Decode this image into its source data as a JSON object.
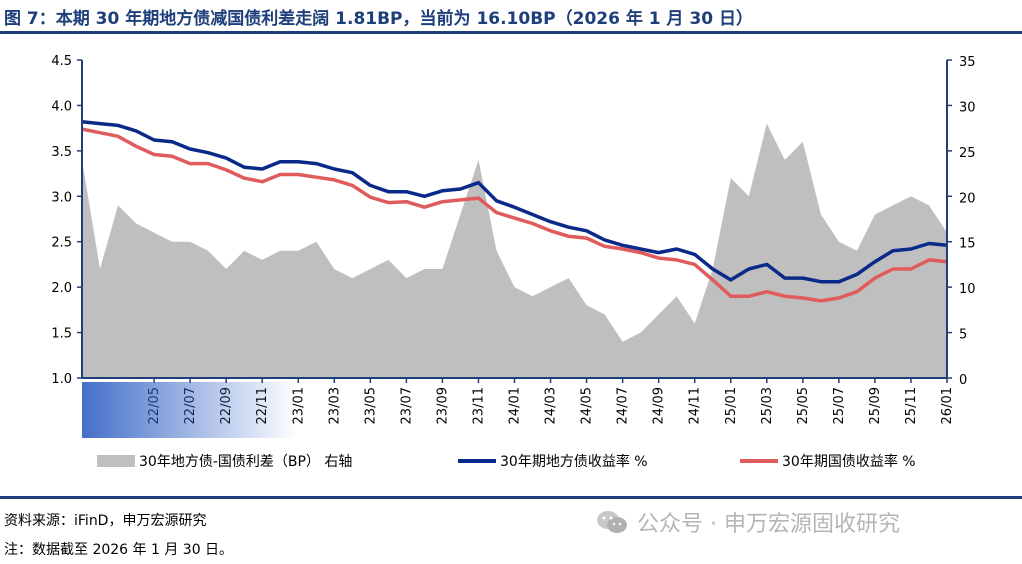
{
  "header": {
    "title": "图 7：本期 30 年期地方债减国债利差走阔 1.81BP，当前为 16.10BP（2026 年 1 月 30 日）"
  },
  "footer": {
    "source": "资料来源：iFinD，申万宏源研究",
    "note": "注：数据截至 2026 年 1 月 30 日。",
    "watermark": "公众号 · 申万宏源固收研究",
    "watermark_icon": "wechat-icon"
  },
  "colors": {
    "title": "#1f3f7a",
    "spread": "#bfbfbf",
    "local_gov": "#0a2a8a",
    "treasury": "#e05b5b",
    "axis": "#1f3f7a"
  },
  "chart_data": {
    "type": "line",
    "x_tick_labels": [
      "22/05",
      "22/07",
      "22/09",
      "22/11",
      "23/01",
      "23/03",
      "23/05",
      "23/07",
      "23/09",
      "23/11",
      "24/01",
      "24/03",
      "24/05",
      "24/07",
      "24/09",
      "24/11",
      "25/01",
      "25/03",
      "25/05",
      "25/07",
      "25/09",
      "25/11",
      "26/01"
    ],
    "x": [
      "22/01",
      "22/02",
      "22/03",
      "22/04",
      "22/05",
      "22/06",
      "22/07",
      "22/08",
      "22/09",
      "22/10",
      "22/11",
      "22/12",
      "23/01",
      "23/02",
      "23/03",
      "23/04",
      "23/05",
      "23/06",
      "23/07",
      "23/08",
      "23/09",
      "23/10",
      "23/11",
      "23/12",
      "24/01",
      "24/02",
      "24/03",
      "24/04",
      "24/05",
      "24/06",
      "24/07",
      "24/08",
      "24/09",
      "24/10",
      "24/11",
      "24/12",
      "25/01",
      "25/02",
      "25/03",
      "25/04",
      "25/05",
      "25/06",
      "25/07",
      "25/08",
      "25/09",
      "25/10",
      "25/11",
      "25/12",
      "26/01"
    ],
    "y_left": {
      "ticks": [
        "1.0",
        "1.5",
        "2.0",
        "2.5",
        "3.0",
        "3.5",
        "4.0",
        "4.5"
      ],
      "range": [
        1.0,
        4.5
      ]
    },
    "y_right": {
      "ticks": [
        "0",
        "5",
        "10",
        "15",
        "20",
        "25",
        "30",
        "35"
      ],
      "range": [
        0,
        35
      ]
    },
    "series": [
      {
        "name": "30年地方债-国债利差（BP） 右轴",
        "type": "area",
        "axis": "right",
        "values": [
          24,
          12,
          19,
          17,
          16,
          15,
          15,
          14,
          12,
          14,
          13,
          14,
          14,
          15,
          12,
          11,
          12,
          13,
          11,
          12,
          12,
          18,
          24,
          14,
          10,
          9,
          10,
          11,
          8,
          7,
          4,
          5,
          7,
          9,
          6,
          12,
          22,
          20,
          28,
          24,
          26,
          18,
          15,
          14,
          18,
          19,
          20,
          19,
          16
        ]
      },
      {
        "name": "30年期地方债收益率 %",
        "type": "line",
        "axis": "left",
        "values": [
          3.82,
          3.8,
          3.78,
          3.72,
          3.62,
          3.6,
          3.52,
          3.48,
          3.42,
          3.32,
          3.3,
          3.38,
          3.38,
          3.36,
          3.3,
          3.26,
          3.12,
          3.05,
          3.05,
          3.0,
          3.06,
          3.08,
          3.15,
          2.95,
          2.88,
          2.8,
          2.72,
          2.66,
          2.62,
          2.52,
          2.46,
          2.42,
          2.38,
          2.42,
          2.36,
          2.2,
          2.08,
          2.2,
          2.25,
          2.1,
          2.1,
          2.06,
          2.06,
          2.14,
          2.28,
          2.4,
          2.42,
          2.48,
          2.46
        ]
      },
      {
        "name": "30年期国债收益率 %",
        "type": "line",
        "axis": "left",
        "values": [
          3.74,
          3.7,
          3.66,
          3.55,
          3.46,
          3.44,
          3.36,
          3.36,
          3.29,
          3.2,
          3.16,
          3.24,
          3.24,
          3.21,
          3.18,
          3.12,
          2.99,
          2.93,
          2.94,
          2.88,
          2.94,
          2.96,
          2.98,
          2.82,
          2.76,
          2.7,
          2.62,
          2.56,
          2.54,
          2.45,
          2.42,
          2.38,
          2.32,
          2.3,
          2.25,
          2.08,
          1.9,
          1.9,
          1.95,
          1.9,
          1.88,
          1.85,
          1.88,
          1.95,
          2.1,
          2.2,
          2.2,
          2.3,
          2.28
        ]
      }
    ],
    "legend": [
      {
        "label": "30年地方债-国债利差（BP） 右轴",
        "color": "#bfbfbf",
        "shape": "rect"
      },
      {
        "label": "30年期地方债收益率 %",
        "color": "#0a2a8a",
        "shape": "line"
      },
      {
        "label": "30年期国债收益率 %",
        "color": "#e05b5b",
        "shape": "line"
      }
    ],
    "legend_placement": "bottom",
    "grid": false
  }
}
